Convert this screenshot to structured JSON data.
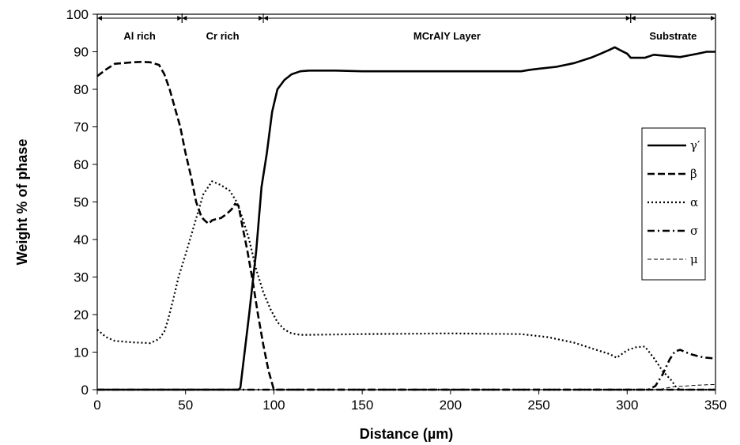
{
  "chart_data": {
    "type": "line",
    "xlabel": "Distance (µm)",
    "ylabel": "Weight % of phase",
    "xlim": [
      0,
      350
    ],
    "ylim": [
      0,
      100
    ],
    "xticks": [
      0,
      50,
      100,
      150,
      200,
      250,
      300,
      350
    ],
    "yticks": [
      0,
      10,
      20,
      30,
      40,
      50,
      60,
      70,
      80,
      90,
      100
    ],
    "grid": false,
    "legend_position": "right",
    "regions": [
      {
        "label": "Al rich",
        "start": 0,
        "end": 48
      },
      {
        "label": "Cr rich",
        "start": 48,
        "end": 94
      },
      {
        "label": "MCrAlY Layer",
        "start": 94,
        "end": 302
      },
      {
        "label": "Substrate",
        "start": 302,
        "end": 350
      }
    ],
    "series": [
      {
        "name": "γ′",
        "style": "solid",
        "x": [
          0,
          80,
          81,
          86,
          90,
          93,
          96,
          99,
          102,
          106,
          110,
          115,
          120,
          135,
          150,
          200,
          240,
          245,
          250,
          260,
          270,
          280,
          285,
          290,
          293,
          297,
          300,
          302,
          306,
          310,
          315,
          320,
          330,
          340,
          345,
          350
        ],
        "y": [
          0,
          0,
          0.5,
          20,
          37,
          54,
          63,
          74,
          80,
          82.5,
          84,
          84.8,
          85,
          85,
          84.8,
          84.8,
          84.8,
          85.2,
          85.5,
          86,
          87,
          88.5,
          89.5,
          90.5,
          91.2,
          90.2,
          89.5,
          88.4,
          88.4,
          88.4,
          89.2,
          89,
          88.6,
          89.5,
          90,
          90
        ]
      },
      {
        "name": "β",
        "style": "dashed",
        "x": [
          0,
          5,
          10,
          15,
          20,
          25,
          30,
          35,
          38,
          41,
          44,
          47,
          50,
          53,
          56,
          59,
          61,
          63,
          65,
          67,
          70,
          73,
          76,
          78,
          80,
          82,
          85,
          88,
          91,
          94,
          97,
          100,
          350
        ],
        "y": [
          83.5,
          85.3,
          86.8,
          87,
          87.2,
          87.3,
          87.2,
          86.5,
          84,
          80,
          75,
          70,
          63,
          57,
          50,
          46,
          45,
          44.2,
          45.1,
          45.4,
          45.7,
          46.7,
          48,
          49.5,
          49,
          44,
          37,
          29,
          20,
          12,
          5,
          0,
          0
        ]
      },
      {
        "name": "α",
        "style": "dotted",
        "x": [
          0,
          5,
          10,
          20,
          30,
          35,
          38,
          40,
          43,
          46,
          50,
          55,
          60,
          65,
          70,
          75,
          79,
          82,
          86,
          90,
          94,
          98,
          102,
          106,
          110,
          115,
          120,
          150,
          200,
          240,
          255,
          270,
          280,
          290,
          294,
          297,
          300,
          305,
          310,
          315,
          320,
          325,
          328,
          330,
          350
        ],
        "y": [
          16,
          14,
          13,
          12.6,
          12.4,
          13.5,
          15.5,
          18.5,
          24,
          30,
          36,
          44,
          52,
          55.5,
          54.5,
          53,
          50,
          46,
          40,
          32,
          26,
          21.5,
          18,
          16,
          15,
          14.6,
          14.6,
          14.8,
          15,
          14.8,
          14,
          12.5,
          11,
          9.5,
          8.5,
          9.5,
          10.5,
          11.3,
          11.5,
          8.5,
          5,
          2.5,
          0.5,
          0,
          0
        ]
      },
      {
        "name": "σ",
        "style": "dash-dot",
        "x": [
          0,
          312,
          316,
          320,
          324,
          327,
          330,
          333,
          337,
          341,
          345,
          350
        ],
        "y": [
          0,
          0,
          1,
          4,
          8,
          10.2,
          10.6,
          10,
          9.3,
          8.8,
          8.5,
          8.3
        ]
      },
      {
        "name": "μ",
        "style": "thin-dashed",
        "x": [
          0,
          318,
          324,
          328,
          332,
          336,
          340,
          345,
          350
        ],
        "y": [
          0,
          0,
          0.6,
          0.9,
          0.9,
          1.1,
          1.2,
          1.3,
          1.4
        ]
      }
    ]
  }
}
